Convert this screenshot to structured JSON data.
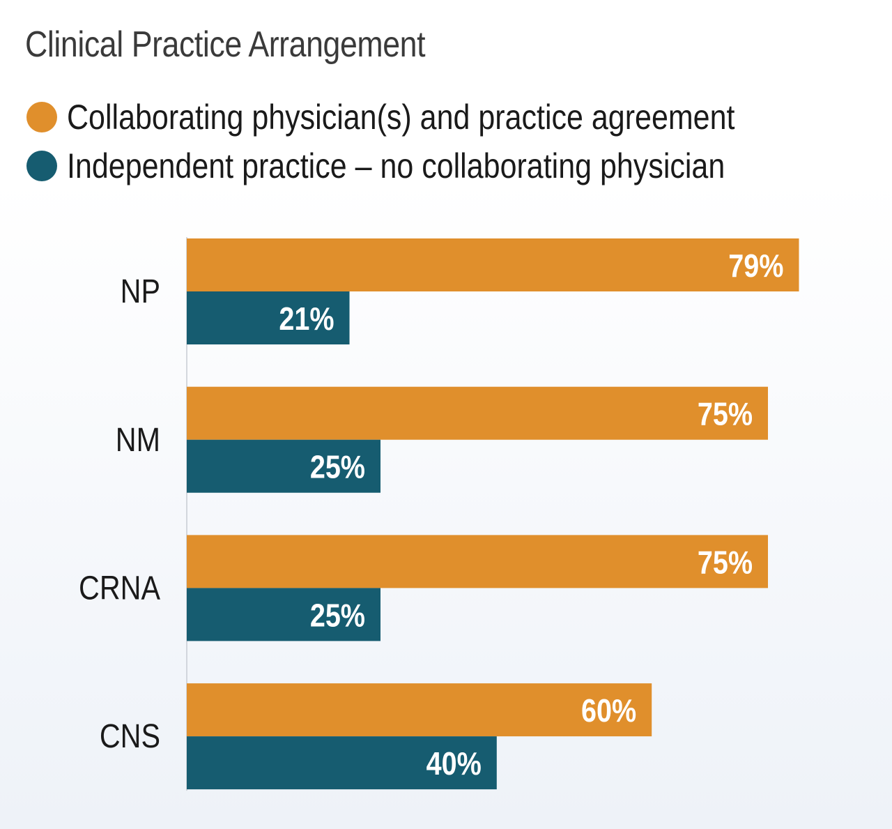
{
  "chart_data": {
    "type": "bar",
    "orientation": "horizontal",
    "title": "Clinical Practice Arrangement",
    "categories": [
      "NP",
      "NM",
      "CRNA",
      "CNS"
    ],
    "series": [
      {
        "name": "Collaborating physician(s) and practice agreement",
        "color": "#e08f2c",
        "values": [
          79,
          75,
          75,
          60
        ],
        "labels": [
          "79%",
          "75%",
          "75%",
          "60%"
        ]
      },
      {
        "name": "Independent practice – no collaborating physician",
        "color": "#165c70",
        "values": [
          21,
          25,
          25,
          40
        ],
        "labels": [
          "21%",
          "25%",
          "25%",
          "40%"
        ]
      }
    ],
    "xlim": [
      0,
      100
    ],
    "grid": false,
    "legend_position": "top-left",
    "data_labels": "inside-end"
  }
}
